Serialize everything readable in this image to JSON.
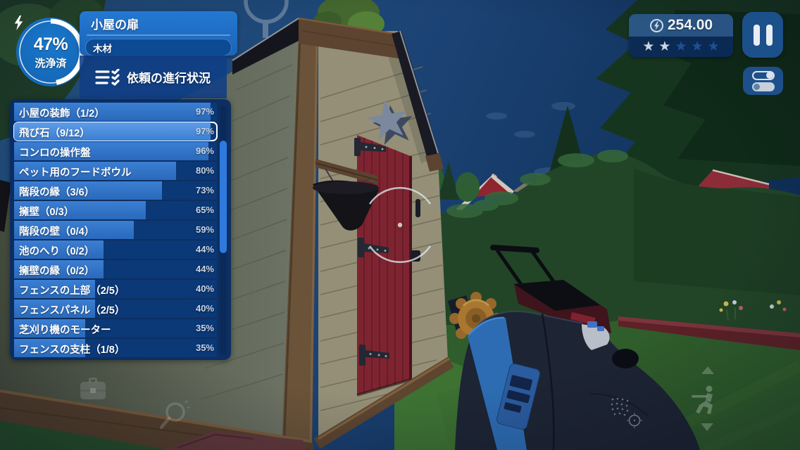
{
  "hud": {
    "progress_badge": {
      "percent": "47%",
      "percent_value": 47,
      "label": "洗浄済",
      "icon": "lightning-icon"
    },
    "header": {
      "title": "小屋の扉",
      "subtitle": "木材"
    },
    "tasks_header": {
      "label": "依頼の進行状況",
      "icon": "checklist-icon"
    },
    "task_list": [
      {
        "label": "小屋の装飾（1/2）",
        "percent": "97%",
        "value": 97,
        "selected": false
      },
      {
        "label": "飛び石（9/12）",
        "percent": "97%",
        "value": 97,
        "selected": true
      },
      {
        "label": "コンロの操作盤",
        "percent": "96%",
        "value": 96,
        "selected": false
      },
      {
        "label": "ペット用のフードボウル",
        "percent": "80%",
        "value": 80,
        "selected": false
      },
      {
        "label": "階段の縁（3/6）",
        "percent": "73%",
        "value": 73,
        "selected": false
      },
      {
        "label": "擁壁（0/3）",
        "percent": "65%",
        "value": 65,
        "selected": false
      },
      {
        "label": "階段の壁（0/4）",
        "percent": "59%",
        "value": 59,
        "selected": false
      },
      {
        "label": "池のへり（0/2）",
        "percent": "44%",
        "value": 44,
        "selected": false
      },
      {
        "label": "擁壁の縁（0/2）",
        "percent": "44%",
        "value": 44,
        "selected": false
      },
      {
        "label": "フェンスの上部（2/5）",
        "percent": "40%",
        "value": 40,
        "selected": false
      },
      {
        "label": "フェンスパネル（2/5）",
        "percent": "40%",
        "value": 40,
        "selected": false
      },
      {
        "label": "芝刈り機のモーター",
        "percent": "35%",
        "value": 35,
        "selected": false
      },
      {
        "label": "フェンスの支柱（1/8）",
        "percent": "35%",
        "value": 35,
        "selected": false
      }
    ],
    "money": {
      "amount": "254.00",
      "coin_icon": "coin-lightning-icon",
      "stars_filled": 2,
      "stars_total": 5
    },
    "buttons": {
      "pause": "pause-icon",
      "settings": "toggles-icon"
    },
    "corner_icons": {
      "bottom_left": [
        "briefcase-icon",
        "magnifier-icon"
      ],
      "bottom_right": [
        "arrow-up-icon",
        "crouch-stance-icon",
        "arrow-down-icon"
      ]
    },
    "colors": {
      "accent_blue": "#1b64b6",
      "panel_dark": "#0a2e66",
      "row_bg": "#0b3876",
      "row_fill": "#2f74c6",
      "row_fill_selected": "#4e96e4",
      "percent_text": "#c9d3e2",
      "star_filled": "#ccd5e2",
      "star_empty": "#1e5095",
      "stars_bar": "#0a2a5a",
      "scroll_thumb": "#2e7ade",
      "door_red": "#7e2431",
      "nozzle_gold": "#a9772f"
    }
  }
}
